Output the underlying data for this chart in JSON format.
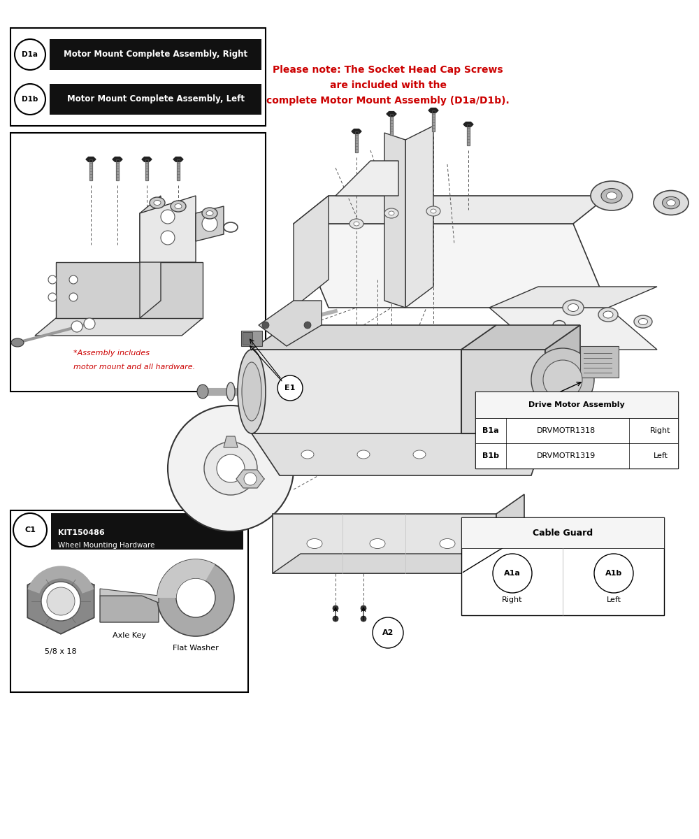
{
  "bg_color": "#ffffff",
  "text_color_red": "#cc0000",
  "text_color_black": "#000000",
  "legend_d1a": "Motor Mount Complete Assembly, Right",
  "legend_d1b": "Motor Mount Complete Assembly, Left",
  "legend_c1_code": "KIT150486",
  "legend_c1_name": "Wheel Mounting Hardware",
  "legend_c1_sub1": "5/8 x 18",
  "legend_c1_sub2": "Flat Washer",
  "legend_c1_sub3": "Axle Key",
  "note_line1": "Please note: The Socket Head Cap Screws",
  "note_line2": "are included with the",
  "note_line3": "complete Motor Mount Assembly (D1a/D1b).",
  "assembly_note_line1": "*Assembly includes",
  "assembly_note_line2": "motor mount and all hardware.",
  "drive_motor_label": "Drive Motor Assembly",
  "drive_b1a_code": "DRVMOTR1318",
  "drive_b1a_side": "Right",
  "drive_b1b_code": "DRVMOTR1319",
  "drive_b1b_side": "Left",
  "drive_b1a_label": "B1a",
  "drive_b1b_label": "B1b",
  "cable_guard_label": "Cable Guard",
  "cable_a1a": "A1a",
  "cable_a1b": "A1b",
  "cable_right": "Right",
  "cable_left": "Left",
  "label_e1": "E1",
  "label_a2": "A2",
  "label_d1a": "D1a",
  "label_d1b": "D1b",
  "label_c1": "C1"
}
